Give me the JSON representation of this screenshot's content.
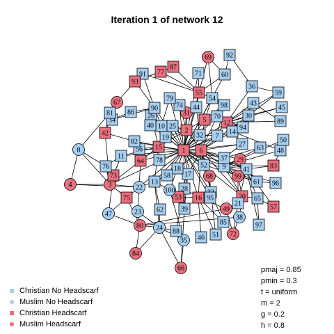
{
  "title": "Iteration  1 of network  12",
  "colors": {
    "christian": "#a6cef0",
    "muslim": "#e8707f",
    "edge": "#000000"
  },
  "legend": [
    {
      "label": "Christian No Headscarf",
      "color": "#a6cef0",
      "shape": "square"
    },
    {
      "label": "Muslim No Headscarf",
      "color": "#a6cef0",
      "shape": "circle"
    },
    {
      "label": "Christian Headscarf",
      "color": "#e8707f",
      "shape": "square"
    },
    {
      "label": "Muslim Headscarf",
      "color": "#e8707f",
      "shape": "circle"
    }
  ],
  "params": [
    "pmaj =  0.85",
    "pmin =  0.3",
    "t =  uniform",
    "m =  2",
    "g =  0.2",
    "h =  0.8"
  ],
  "nodes": [
    {
      "id": "1",
      "shape": "square",
      "headscarf": true
    },
    {
      "id": "2",
      "shape": "square",
      "headscarf": true
    },
    {
      "id": "3",
      "shape": "circle",
      "headscarf": true
    },
    {
      "id": "4",
      "shape": "circle",
      "headscarf": true
    },
    {
      "id": "5",
      "shape": "square",
      "headscarf": true
    },
    {
      "id": "6",
      "shape": "square",
      "headscarf": true
    },
    {
      "id": "7",
      "shape": "square",
      "headscarf": false
    },
    {
      "id": "8",
      "shape": "circle",
      "headscarf": false
    },
    {
      "id": "9",
      "shape": "square",
      "headscarf": false
    },
    {
      "id": "10",
      "shape": "square",
      "headscarf": false
    },
    {
      "id": "11",
      "shape": "square",
      "headscarf": false
    },
    {
      "id": "12",
      "shape": "square",
      "headscarf": true
    },
    {
      "id": "13",
      "shape": "square",
      "headscarf": false
    },
    {
      "id": "14",
      "shape": "square",
      "headscarf": false
    },
    {
      "id": "15",
      "shape": "square",
      "headscarf": true
    },
    {
      "id": "16",
      "shape": "square",
      "headscarf": true
    },
    {
      "id": "17",
      "shape": "square",
      "headscarf": false
    },
    {
      "id": "18",
      "shape": "square",
      "headscarf": false
    },
    {
      "id": "19",
      "shape": "square",
      "headscarf": false
    },
    {
      "id": "20",
      "shape": "square",
      "headscarf": true
    },
    {
      "id": "21",
      "shape": "square",
      "headscarf": false
    },
    {
      "id": "22",
      "shape": "circle",
      "headscarf": false
    },
    {
      "id": "23",
      "shape": "circle",
      "headscarf": false
    },
    {
      "id": "24",
      "shape": "circle",
      "headscarf": false
    },
    {
      "id": "25",
      "shape": "square",
      "headscarf": false
    },
    {
      "id": "26",
      "shape": "square",
      "headscarf": false
    },
    {
      "id": "27",
      "shape": "square",
      "headscarf": false
    },
    {
      "id": "28",
      "shape": "square",
      "headscarf": false
    },
    {
      "id": "29",
      "shape": "circle",
      "headscarf": true
    },
    {
      "id": "30",
      "shape": "square",
      "headscarf": false
    },
    {
      "id": "31",
      "shape": "circle",
      "headscarf": true
    },
    {
      "id": "32",
      "shape": "square",
      "headscarf": false
    },
    {
      "id": "33",
      "shape": "square",
      "headscarf": false
    },
    {
      "id": "34",
      "shape": "square",
      "headscarf": false
    },
    {
      "id": "35",
      "shape": "circle",
      "headscarf": false
    },
    {
      "id": "36",
      "shape": "square",
      "headscarf": false
    },
    {
      "id": "37",
      "shape": "square",
      "headscarf": false
    },
    {
      "id": "38",
      "shape": "circle",
      "headscarf": false
    },
    {
      "id": "39",
      "shape": "square",
      "headscarf": false
    },
    {
      "id": "40",
      "shape": "square",
      "headscarf": false
    },
    {
      "id": "41",
      "shape": "square",
      "headscarf": false
    },
    {
      "id": "42",
      "shape": "square",
      "headscarf": true
    },
    {
      "id": "43",
      "shape": "square",
      "headscarf": false
    },
    {
      "id": "44",
      "shape": "square",
      "headscarf": false
    },
    {
      "id": "45",
      "shape": "square",
      "headscarf": false
    },
    {
      "id": "46",
      "shape": "square",
      "headscarf": false
    },
    {
      "id": "47",
      "shape": "circle",
      "headscarf": false
    },
    {
      "id": "48",
      "shape": "square",
      "headscarf": false
    },
    {
      "id": "49",
      "shape": "circle",
      "headscarf": true
    },
    {
      "id": "50",
      "shape": "square",
      "headscarf": false
    },
    {
      "id": "51",
      "shape": "square",
      "headscarf": false
    },
    {
      "id": "52",
      "shape": "square",
      "headscarf": false
    },
    {
      "id": "53",
      "shape": "square",
      "headscarf": true
    },
    {
      "id": "54",
      "shape": "square",
      "headscarf": false
    },
    {
      "id": "55",
      "shape": "square",
      "headscarf": true
    },
    {
      "id": "56",
      "shape": "square",
      "headscarf": false
    },
    {
      "id": "57",
      "shape": "square",
      "headscarf": true
    },
    {
      "id": "58",
      "shape": "square",
      "headscarf": false
    },
    {
      "id": "59",
      "shape": "square",
      "headscarf": false
    },
    {
      "id": "60",
      "shape": "square",
      "headscarf": false
    },
    {
      "id": "61",
      "shape": "square",
      "headscarf": false
    },
    {
      "id": "62",
      "shape": "square",
      "headscarf": false
    },
    {
      "id": "63",
      "shape": "square",
      "headscarf": false
    },
    {
      "id": "64",
      "shape": "square",
      "headscarf": true
    },
    {
      "id": "65",
      "shape": "square",
      "headscarf": false
    },
    {
      "id": "66",
      "shape": "circle",
      "headscarf": true
    },
    {
      "id": "67",
      "shape": "circle",
      "headscarf": true
    },
    {
      "id": "68",
      "shape": "circle",
      "headscarf": true
    },
    {
      "id": "69",
      "shape": "circle",
      "headscarf": true
    },
    {
      "id": "70",
      "shape": "square",
      "headscarf": false
    },
    {
      "id": "71",
      "shape": "square",
      "headscarf": false
    },
    {
      "id": "72",
      "shape": "circle",
      "headscarf": true
    },
    {
      "id": "73",
      "shape": "square",
      "headscarf": true
    },
    {
      "id": "74",
      "shape": "square",
      "headscarf": false
    },
    {
      "id": "75",
      "shape": "square",
      "headscarf": true
    },
    {
      "id": "76",
      "shape": "square",
      "headscarf": false
    },
    {
      "id": "77",
      "shape": "square",
      "headscarf": true
    },
    {
      "id": "78",
      "shape": "square",
      "headscarf": false
    },
    {
      "id": "79",
      "shape": "square",
      "headscarf": false
    },
    {
      "id": "80",
      "shape": "circle",
      "headscarf": true
    },
    {
      "id": "81",
      "shape": "square",
      "headscarf": false
    },
    {
      "id": "82",
      "shape": "square",
      "headscarf": false
    },
    {
      "id": "83",
      "shape": "square",
      "headscarf": true
    },
    {
      "id": "84",
      "shape": "circle",
      "headscarf": true
    },
    {
      "id": "85",
      "shape": "square",
      "headscarf": false
    },
    {
      "id": "86",
      "shape": "square",
      "headscarf": false
    },
    {
      "id": "87",
      "shape": "square",
      "headscarf": true
    },
    {
      "id": "88",
      "shape": "square",
      "headscarf": false
    },
    {
      "id": "89",
      "shape": "square",
      "headscarf": false
    },
    {
      "id": "90",
      "shape": "square",
      "headscarf": false
    },
    {
      "id": "91",
      "shape": "square",
      "headscarf": false
    },
    {
      "id": "92",
      "shape": "square",
      "headscarf": false
    },
    {
      "id": "93",
      "shape": "square",
      "headscarf": true
    },
    {
      "id": "94",
      "shape": "square",
      "headscarf": false
    },
    {
      "id": "95",
      "shape": "square",
      "headscarf": false
    },
    {
      "id": "96",
      "shape": "square",
      "headscarf": false
    },
    {
      "id": "97",
      "shape": "square",
      "headscarf": false
    },
    {
      "id": "98",
      "shape": "square",
      "headscarf": false
    },
    {
      "id": "99",
      "shape": "circle",
      "headscarf": true
    },
    {
      "id": "100",
      "shape": "circle",
      "headscarf": false
    }
  ]
}
